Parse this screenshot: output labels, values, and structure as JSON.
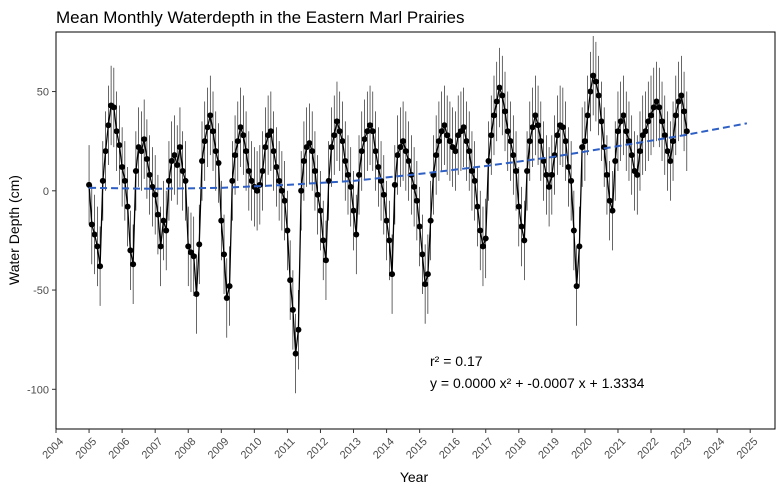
{
  "chart_data": {
    "type": "scatter",
    "title": "Mean Monthly Waterdepth in the Eastern Marl Prairies",
    "xlabel": "Year",
    "ylabel": "Water Depth (cm)",
    "xlim": [
      2004,
      2025.75
    ],
    "ylim": [
      -120,
      80
    ],
    "x_ticks": [
      2004,
      2005,
      2006,
      2007,
      2008,
      2009,
      2010,
      2011,
      2012,
      2013,
      2014,
      2015,
      2016,
      2017,
      2018,
      2019,
      2020,
      2021,
      2022,
      2023,
      2024,
      2025
    ],
    "y_ticks": [
      -100,
      -50,
      0,
      50
    ],
    "grid": false,
    "legend": "none",
    "point_color": "#000000",
    "trend_color": "#2e5fc4",
    "error_bar_halfwidth_cm": 20,
    "annotations": [
      "r² = 0.17",
      "y = 0.0000 x² + -0.0007 x + 1.3334"
    ],
    "trend": [
      {
        "x": 2005.0,
        "y": 1.5
      },
      {
        "x": 2007.0,
        "y": 1.0
      },
      {
        "x": 2009.0,
        "y": 1.5
      },
      {
        "x": 2011.0,
        "y": 3.0
      },
      {
        "x": 2013.0,
        "y": 5.0
      },
      {
        "x": 2015.0,
        "y": 8.5
      },
      {
        "x": 2017.0,
        "y": 12.5
      },
      {
        "x": 2019.0,
        "y": 17.0
      },
      {
        "x": 2021.0,
        "y": 22.5
      },
      {
        "x": 2023.0,
        "y": 28.0
      },
      {
        "x": 2024.9,
        "y": 34.0
      }
    ],
    "series": [
      {
        "x_start": 2005.0,
        "x_step": 0.08333,
        "values": [
          3,
          -17,
          -22,
          -28,
          -38,
          5,
          20,
          33,
          43,
          42,
          30,
          23,
          12,
          5,
          -8,
          -30,
          -37,
          10,
          22,
          20,
          26,
          16,
          8,
          2,
          -2,
          -12,
          -28,
          -15,
          -20,
          5,
          15,
          18,
          13,
          22,
          10,
          5,
          -28,
          -31,
          -33,
          -52,
          -27,
          15,
          25,
          32,
          38,
          30,
          20,
          14,
          -15,
          -32,
          -54,
          -48,
          5,
          18,
          25,
          32,
          28,
          20,
          10,
          5,
          2,
          0,
          3,
          10,
          22,
          28,
          30,
          20,
          12,
          5,
          0,
          -5,
          -20,
          -45,
          -60,
          -82,
          -70,
          0,
          15,
          22,
          24,
          20,
          10,
          -2,
          -10,
          -25,
          -35,
          5,
          22,
          28,
          35,
          30,
          25,
          15,
          8,
          2,
          -10,
          -22,
          8,
          20,
          26,
          30,
          33,
          30,
          20,
          12,
          5,
          -2,
          -15,
          -25,
          -42,
          3,
          18,
          22,
          25,
          20,
          15,
          8,
          2,
          -5,
          -18,
          -32,
          -47,
          -42,
          -15,
          8,
          18,
          25,
          30,
          33,
          28,
          25,
          22,
          20,
          28,
          30,
          32,
          25,
          20,
          10,
          5,
          -8,
          -20,
          -28,
          -24,
          15,
          28,
          38,
          45,
          52,
          48,
          40,
          30,
          25,
          18,
          10,
          -8,
          -18,
          -25,
          10,
          25,
          32,
          38,
          33,
          25,
          15,
          8,
          2,
          8,
          18,
          28,
          33,
          32,
          25,
          12,
          5,
          -20,
          -48,
          -28,
          22,
          25,
          38,
          50,
          58,
          55,
          48,
          35,
          22,
          8,
          -5,
          -10,
          15,
          30,
          35,
          38,
          30,
          25,
          18,
          10,
          8,
          20,
          28,
          30,
          35,
          38,
          42,
          45,
          42,
          35,
          28,
          20,
          15,
          25,
          38,
          45,
          48,
          40,
          30
        ]
      }
    ]
  }
}
